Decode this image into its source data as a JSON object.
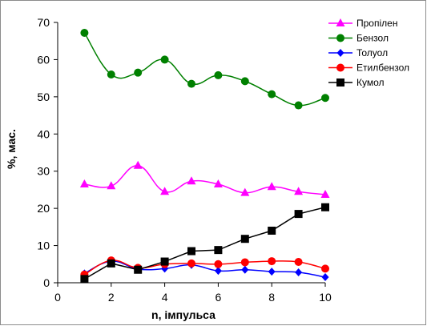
{
  "chart_data": {
    "type": "line",
    "xlabel": "n, імпульса",
    "ylabel": "%, мас.",
    "xlim": [
      0,
      10
    ],
    "ylim": [
      0,
      70
    ],
    "x_ticks": [
      0,
      2,
      4,
      6,
      8,
      10
    ],
    "y_ticks": [
      0,
      10,
      20,
      30,
      40,
      50,
      60,
      70
    ],
    "grid": false,
    "legend_position": "top-right",
    "x": [
      1,
      2,
      3,
      4,
      5,
      6,
      7,
      8,
      9,
      10
    ],
    "series": [
      {
        "name": "Пропілен",
        "color": "#ff00ff",
        "marker": "triangle",
        "values": [
          26.5,
          26.0,
          31.5,
          24.5,
          27.3,
          26.5,
          24.2,
          25.8,
          24.5,
          23.7
        ]
      },
      {
        "name": "Бензол",
        "color": "#008000",
        "marker": "circle",
        "values": [
          67.2,
          56.0,
          56.5,
          60.0,
          53.5,
          55.8,
          54.2,
          50.7,
          47.7,
          49.7
        ]
      },
      {
        "name": "Толуол",
        "color": "#0000ff",
        "marker": "diamond",
        "values": [
          2.5,
          5.8,
          3.7,
          3.8,
          4.8,
          3.2,
          3.5,
          3.0,
          2.8,
          1.5
        ]
      },
      {
        "name": "Етилбензол",
        "color": "#ff0000",
        "marker": "circle",
        "values": [
          2.2,
          6.0,
          4.0,
          5.0,
          5.2,
          5.0,
          5.5,
          5.8,
          5.6,
          3.8
        ]
      },
      {
        "name": "Кумол",
        "color": "#000000",
        "marker": "square",
        "values": [
          1.0,
          5.2,
          3.5,
          5.7,
          8.5,
          8.8,
          11.8,
          14.0,
          18.5,
          20.3
        ]
      }
    ]
  }
}
